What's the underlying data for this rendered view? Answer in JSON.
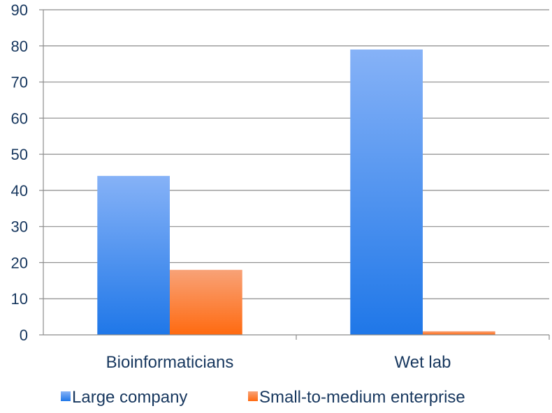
{
  "chart_data": {
    "type": "bar",
    "title": "",
    "xlabel": "",
    "ylabel": "",
    "categories": [
      "Bioinformaticians",
      "Wet lab"
    ],
    "series": [
      {
        "name": "Large company",
        "values": [
          44,
          79
        ],
        "color": "#1f77e8",
        "color_light": "#86b2f7"
      },
      {
        "name": "Small-to-medium enterprise",
        "values": [
          18,
          1
        ],
        "color": "#ff6a10",
        "color_light": "#f8a277"
      }
    ],
    "ylim": [
      0,
      90
    ],
    "yticks": [
      "0",
      "10",
      "20",
      "30",
      "40",
      "50",
      "60",
      "70",
      "80",
      "90"
    ],
    "grid": true,
    "legend_position": "bottom"
  }
}
